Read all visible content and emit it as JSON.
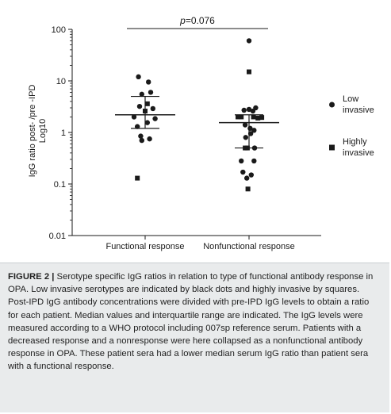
{
  "chart_data": {
    "type": "scatter",
    "ylabel": "IgG ratio post- /pre -IPD Log10",
    "yscale": "log",
    "ylim": [
      0.01,
      100
    ],
    "yticks": [
      "100",
      "10",
      "1",
      "0.1",
      "0.01"
    ],
    "categories": [
      "Functional response",
      "Nonfunctional response"
    ],
    "annotation": {
      "p_italic": "p",
      "p_rest": "=0.076"
    },
    "legend": [
      {
        "name": "Low invasive",
        "line1": "Low",
        "line2": "invasive",
        "marker": "circle"
      },
      {
        "name": "Highly invasive",
        "line1": "Highly",
        "line2": "invasive",
        "marker": "square"
      }
    ],
    "summary": [
      {
        "category": "Functional response",
        "median": 2.2,
        "q1": 1.2,
        "q3": 5.0
      },
      {
        "category": "Nonfunctional response",
        "median": 1.55,
        "q1": 0.5,
        "q3": 2.2
      }
    ],
    "points": [
      {
        "category": "Functional response",
        "offset": -0.6,
        "y": 12,
        "marker": "circle"
      },
      {
        "category": "Functional response",
        "offset": 0.3,
        "y": 9.5,
        "marker": "circle"
      },
      {
        "category": "Functional response",
        "offset": -0.3,
        "y": 5.5,
        "marker": "circle"
      },
      {
        "category": "Functional response",
        "offset": 0.5,
        "y": 6.0,
        "marker": "circle"
      },
      {
        "category": "Functional response",
        "offset": 0.2,
        "y": 3.6,
        "marker": "square"
      },
      {
        "category": "Functional response",
        "offset": -0.5,
        "y": 3.2,
        "marker": "circle"
      },
      {
        "category": "Functional response",
        "offset": 0.7,
        "y": 2.9,
        "marker": "circle"
      },
      {
        "category": "Functional response",
        "offset": 0.0,
        "y": 2.6,
        "marker": "square"
      },
      {
        "category": "Functional response",
        "offset": -1.0,
        "y": 2.0,
        "marker": "circle"
      },
      {
        "category": "Functional response",
        "offset": 0.9,
        "y": 1.85,
        "marker": "circle"
      },
      {
        "category": "Functional response",
        "offset": 0.2,
        "y": 1.55,
        "marker": "circle"
      },
      {
        "category": "Functional response",
        "offset": -0.7,
        "y": 1.3,
        "marker": "circle"
      },
      {
        "category": "Functional response",
        "offset": -0.4,
        "y": 0.85,
        "marker": "circle"
      },
      {
        "category": "Functional response",
        "offset": -0.3,
        "y": 0.7,
        "marker": "circle"
      },
      {
        "category": "Functional response",
        "offset": 0.4,
        "y": 0.75,
        "marker": "circle"
      },
      {
        "category": "Functional response",
        "offset": -0.7,
        "y": 0.13,
        "marker": "square"
      },
      {
        "category": "Nonfunctional response",
        "offset": 0.0,
        "y": 60,
        "marker": "circle"
      },
      {
        "category": "Nonfunctional response",
        "offset": 0.0,
        "y": 15,
        "marker": "square"
      },
      {
        "category": "Nonfunctional response",
        "offset": 0.6,
        "y": 3.0,
        "marker": "circle"
      },
      {
        "category": "Nonfunctional response",
        "offset": 0.0,
        "y": 2.8,
        "marker": "circle"
      },
      {
        "category": "Nonfunctional response",
        "offset": -0.45,
        "y": 2.7,
        "marker": "circle"
      },
      {
        "category": "Nonfunctional response",
        "offset": 0.35,
        "y": 2.6,
        "marker": "circle"
      },
      {
        "category": "Nonfunctional response",
        "offset": -1.0,
        "y": 2.0,
        "marker": "square"
      },
      {
        "category": "Nonfunctional response",
        "offset": -0.7,
        "y": 2.0,
        "marker": "square"
      },
      {
        "category": "Nonfunctional response",
        "offset": 0.4,
        "y": 2.0,
        "marker": "square"
      },
      {
        "category": "Nonfunctional response",
        "offset": 0.8,
        "y": 1.9,
        "marker": "square"
      },
      {
        "category": "Nonfunctional response",
        "offset": 1.15,
        "y": 1.95,
        "marker": "square"
      },
      {
        "category": "Nonfunctional response",
        "offset": -0.35,
        "y": 1.4,
        "marker": "circle"
      },
      {
        "category": "Nonfunctional response",
        "offset": 0.1,
        "y": 1.2,
        "marker": "circle"
      },
      {
        "category": "Nonfunctional response",
        "offset": 0.45,
        "y": 1.1,
        "marker": "circle"
      },
      {
        "category": "Nonfunctional response",
        "offset": 0.15,
        "y": 0.95,
        "marker": "circle"
      },
      {
        "category": "Nonfunctional response",
        "offset": -0.3,
        "y": 0.8,
        "marker": "circle"
      },
      {
        "category": "Nonfunctional response",
        "offset": -0.35,
        "y": 0.5,
        "marker": "square"
      },
      {
        "category": "Nonfunctional response",
        "offset": -0.15,
        "y": 0.5,
        "marker": "square"
      },
      {
        "category": "Nonfunctional response",
        "offset": 0.5,
        "y": 0.5,
        "marker": "circle"
      },
      {
        "category": "Nonfunctional response",
        "offset": -0.7,
        "y": 0.28,
        "marker": "circle"
      },
      {
        "category": "Nonfunctional response",
        "offset": 0.45,
        "y": 0.28,
        "marker": "circle"
      },
      {
        "category": "Nonfunctional response",
        "offset": -0.55,
        "y": 0.17,
        "marker": "circle"
      },
      {
        "category": "Nonfunctional response",
        "offset": -0.2,
        "y": 0.13,
        "marker": "circle"
      },
      {
        "category": "Nonfunctional response",
        "offset": 0.2,
        "y": 0.15,
        "marker": "circle"
      },
      {
        "category": "Nonfunctional response",
        "offset": -0.1,
        "y": 0.08,
        "marker": "square"
      }
    ]
  },
  "caption": {
    "title": "FIGURE 2 |",
    "text": " Serotype specific IgG ratios in relation to type of functional antibody response in OPA. Low invasive serotypes are indicated by black dots and highly invasive by squares. Post-IPD IgG antibody concentrations were divided with pre-IPD IgG levels to obtain a ratio for each patient. Median values and interquartile range are indicated. The IgG levels were measured according to a WHO protocol including 007sp reference serum. Patients with a decreased response and a nonresponse were here collapsed as a nonfunctional antibody response in OPA. These patient sera had a lower median serum IgG ratio than patient sera with a functional response."
  }
}
